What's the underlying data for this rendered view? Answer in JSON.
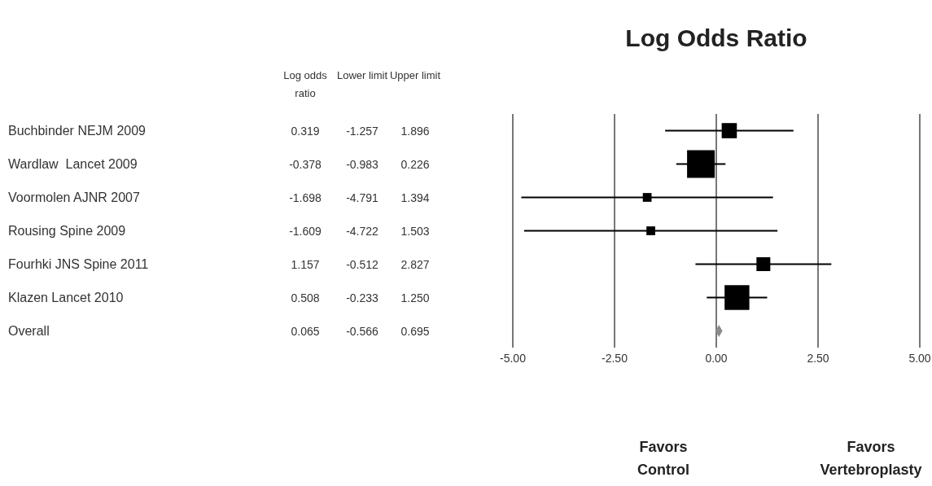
{
  "chart_data": [
    {
      "type": "other",
      "categories": [
        "Buchbinder NEJM 2009",
        "Wardlaw  Lancet 2009",
        "Voormolen AJNR 2007",
        "Rousing Spine 2009",
        "Fourhki JNS Spine 2011",
        "Klazen Lancet 2010",
        "Overall"
      ],
      "series": [
        {
          "name": "Log odds ratio",
          "values": [
            0.319,
            -0.378,
            -1.698,
            -1.609,
            1.157,
            0.508,
            0.065
          ],
          "value_labels": [
            "0.319",
            "-0.378",
            "-1.698",
            "-1.609",
            "1.157",
            "0.508",
            "0.065"
          ]
        },
        {
          "name": "Lower limit",
          "values": [
            -1.257,
            -0.983,
            -4.791,
            -4.722,
            -0.512,
            -0.233,
            -0.566
          ],
          "value_labels": [
            "-1.257",
            "-0.983",
            "-4.791",
            "-4.722",
            "-0.512",
            "-0.233",
            "-0.566"
          ]
        },
        {
          "name": "Upper limit",
          "values": [
            1.896,
            0.226,
            1.394,
            1.503,
            2.827,
            1.25,
            0.695
          ],
          "value_labels": [
            "1.896",
            "0.226",
            "1.394",
            "1.503",
            "2.827",
            "1.250",
            "0.695"
          ]
        }
      ]
    },
    {
      "type": "scatter",
      "orientation": "horizontal",
      "title": "Log Odds Ratio",
      "categories": [
        null,
        null,
        null,
        null,
        null,
        null,
        null
      ],
      "series": [
        {
          "color": "#000000",
          "marker": "square",
          "values": [
            0.319,
            -0.378,
            -1.698,
            -1.609,
            1.157,
            0.508,
            null
          ],
          "errors": [
            [
              -1.257,
              1.896
            ],
            [
              -0.983,
              0.226
            ],
            [
              -4.791,
              1.394
            ],
            [
              -4.722,
              1.503
            ],
            [
              -0.512,
              2.827
            ],
            [
              -0.233,
              1.25
            ],
            null
          ],
          "sizes": [
            0.3,
            1,
            0.1,
            0.1,
            0.25,
            0.8,
            null
          ]
        },
        {
          "color": "#8c8c8c",
          "marker": "diamond",
          "values": [
            null,
            null,
            null,
            null,
            null,
            null,
            0.065
          ]
        }
      ],
      "xlim": [
        -5,
        5
      ],
      "xticks": [
        {
          "value": -5,
          "label": "-5.00"
        },
        {
          "value": -2.5,
          "label": "-2.50"
        },
        {
          "value": 0,
          "label": "0.00"
        },
        {
          "value": 2.5,
          "label": "2.50"
        },
        {
          "value": 5,
          "label": "5.00"
        }
      ],
      "grid": "x",
      "tick_labels": "x",
      "annotations": [
        "Favors Control",
        "Favors Vertebroplasty"
      ]
    }
  ]
}
